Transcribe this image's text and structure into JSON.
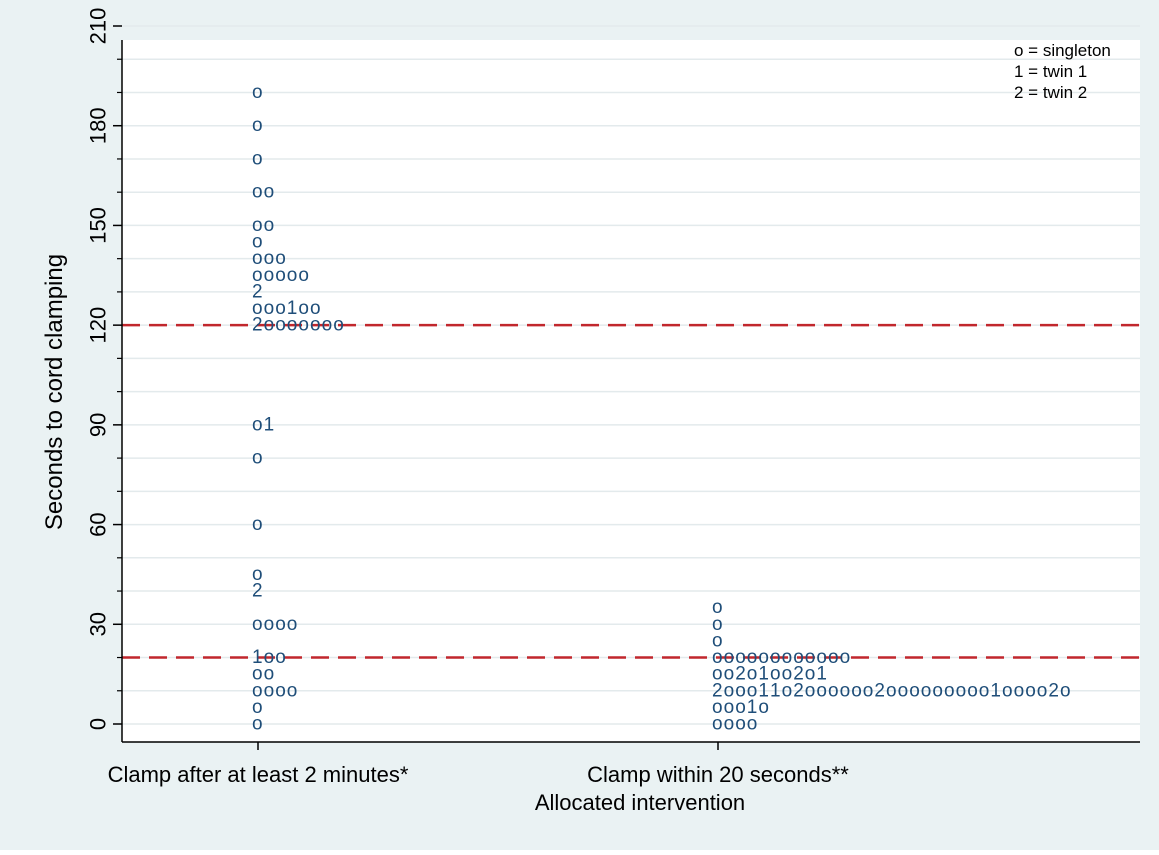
{
  "chart_data": {
    "type": "scatter",
    "title": "",
    "xlabel": "Allocated intervention",
    "ylabel": "Seconds to cord clamping",
    "ylim": [
      0,
      210
    ],
    "yticks": [
      0,
      30,
      60,
      90,
      120,
      150,
      180,
      210
    ],
    "yminor_ticks": [
      10,
      20,
      40,
      50,
      70,
      80,
      100,
      110,
      130,
      140,
      160,
      170,
      190,
      200
    ],
    "categories": [
      "Clamp after at least 2 minutes*",
      "Clamp within 20 seconds**"
    ],
    "reference_lines": [
      120,
      20
    ],
    "legend": {
      "position": "top-right",
      "items": [
        "o = singleton",
        "1 = twin 1",
        "2 = twin 2"
      ]
    },
    "grid": true,
    "rows": [
      {
        "group": 0,
        "y": 190,
        "markers": "o"
      },
      {
        "group": 0,
        "y": 180,
        "markers": "o"
      },
      {
        "group": 0,
        "y": 170,
        "markers": "o"
      },
      {
        "group": 0,
        "y": 160,
        "markers": "oo"
      },
      {
        "group": 0,
        "y": 150,
        "markers": "oo"
      },
      {
        "group": 0,
        "y": 145,
        "markers": "o"
      },
      {
        "group": 0,
        "y": 140,
        "markers": "ooo"
      },
      {
        "group": 0,
        "y": 135,
        "markers": "ooooo"
      },
      {
        "group": 0,
        "y": 130,
        "markers": "2"
      },
      {
        "group": 0,
        "y": 125,
        "markers": "ooo1oo"
      },
      {
        "group": 0,
        "y": 120,
        "markers": "2ooooooo"
      },
      {
        "group": 0,
        "y": 90,
        "markers": "o1"
      },
      {
        "group": 0,
        "y": 80,
        "markers": "o"
      },
      {
        "group": 0,
        "y": 60,
        "markers": "o"
      },
      {
        "group": 0,
        "y": 45,
        "markers": "o"
      },
      {
        "group": 0,
        "y": 40,
        "markers": "2"
      },
      {
        "group": 0,
        "y": 30,
        "markers": "oooo"
      },
      {
        "group": 0,
        "y": 20,
        "markers": "1oo"
      },
      {
        "group": 0,
        "y": 15,
        "markers": "oo"
      },
      {
        "group": 0,
        "y": 10,
        "markers": "oooo"
      },
      {
        "group": 0,
        "y": 5,
        "markers": "o"
      },
      {
        "group": 0,
        "y": 0,
        "markers": "o"
      },
      {
        "group": 1,
        "y": 35,
        "markers": "o"
      },
      {
        "group": 1,
        "y": 30,
        "markers": "o"
      },
      {
        "group": 1,
        "y": 25,
        "markers": "o"
      },
      {
        "group": 1,
        "y": 20,
        "markers": "oooooooooooo"
      },
      {
        "group": 1,
        "y": 15,
        "markers": "oo2o1oo2o1"
      },
      {
        "group": 1,
        "y": 10,
        "markers": "2ooo11o2oooooo2ooooooooo1oooo2o"
      },
      {
        "group": 1,
        "y": 5,
        "markers": "ooo1o"
      },
      {
        "group": 1,
        "y": 0,
        "markers": "oooo"
      }
    ],
    "colors": {
      "background": "#eaf2f3",
      "plot_area": "#ffffff",
      "marker": "#1f4e79",
      "reference_line": "#c1272d",
      "grid": "#e3eaec",
      "axis": "#000000"
    }
  }
}
